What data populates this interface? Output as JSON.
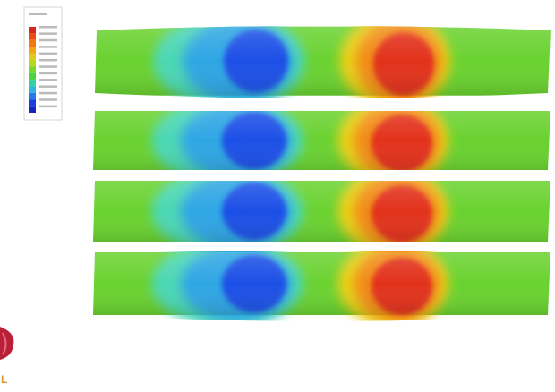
{
  "legend": {
    "colors": [
      "#d8261c",
      "#ea4a16",
      "#f27a12",
      "#f2a414",
      "#e3c81a",
      "#b8d820",
      "#7ad628",
      "#4cd244",
      "#36cfa8",
      "#2fb5e0",
      "#2a7ae6",
      "#1c3fe0",
      "#1626b8"
    ]
  }
}
